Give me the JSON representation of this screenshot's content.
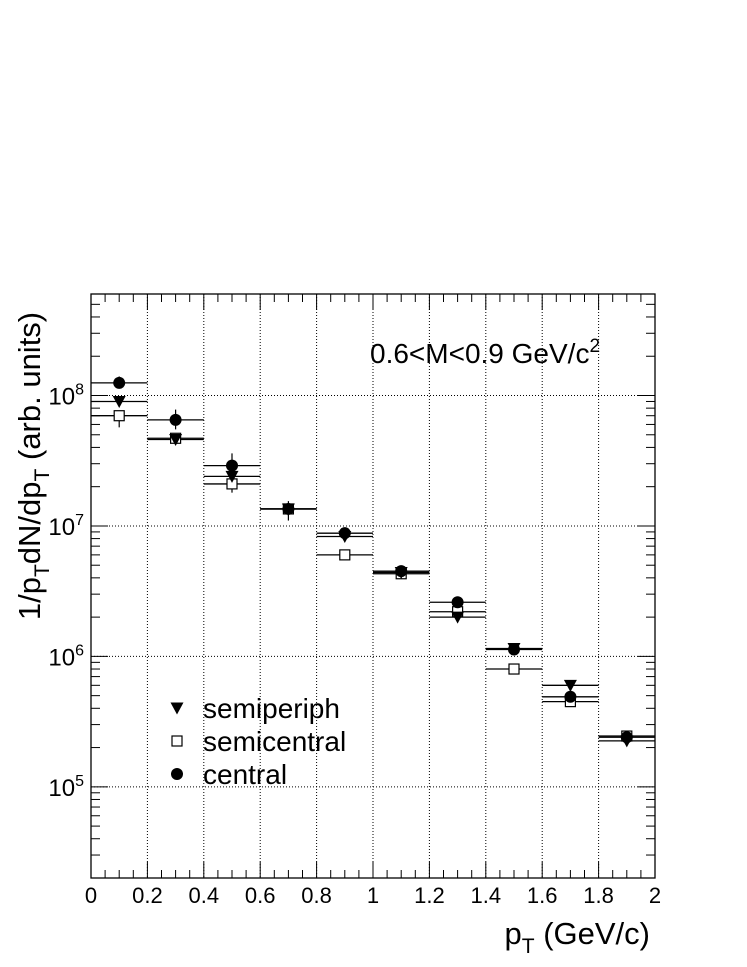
{
  "chart_data": {
    "type": "scatter",
    "annotation_main": "0.6<M<0.9 GeV/c",
    "annotation_sup": "2",
    "ylabel": {
      "parts": [
        {
          "t": "1/p",
          "s": "n"
        },
        {
          "t": "T",
          "s": "sub"
        },
        {
          "t": "dN/dp",
          "s": "n"
        },
        {
          "t": "T",
          "s": "sub"
        },
        {
          "t": " (arb. units)",
          "s": "n"
        }
      ]
    },
    "xlabel": {
      "parts": [
        {
          "t": "p",
          "s": "n"
        },
        {
          "t": "T",
          "s": "sub"
        },
        {
          "t": " (GeV/c)",
          "s": "n"
        }
      ]
    },
    "x_axis": {
      "range": [
        0,
        2
      ],
      "tick_values": [
        0,
        0.2,
        0.4,
        0.6,
        0.8,
        1,
        1.2,
        1.4,
        1.6,
        1.8,
        2
      ],
      "tick_labels": [
        "0",
        "0.2",
        "0.4",
        "0.6",
        "0.8",
        "1",
        "1.2",
        "1.4",
        "1.6",
        "1.8",
        "2"
      ]
    },
    "y_axis": {
      "scale": "log",
      "range": [
        20000,
        600000000
      ],
      "decade_values": [
        100000,
        1000000,
        10000000,
        100000000
      ],
      "decade_base": "10",
      "decade_exponents": [
        "5",
        "6",
        "7",
        "8"
      ]
    },
    "grid": true,
    "bin_halfwidth": 0.1,
    "legend_position": "lower-left",
    "series": [
      {
        "name": "semiperiph",
        "marker": "triangle-down-filled",
        "x": [
          0.1,
          0.3,
          0.5,
          0.7,
          0.9,
          1.1,
          1.3,
          1.5,
          1.7,
          1.9
        ],
        "y": [
          90000000,
          46000000,
          24000000,
          13500000,
          8300000,
          4400000,
          2000000,
          1150000,
          600000,
          225000
        ],
        "y_lo": [
          null,
          43000000,
          21000000,
          12000000,
          null,
          null,
          null,
          null,
          null,
          null
        ],
        "y_hi": [
          null,
          50000000,
          28000000,
          15500000,
          null,
          null,
          null,
          null,
          null,
          null
        ]
      },
      {
        "name": "semicentral",
        "marker": "square-open",
        "x": [
          0.1,
          0.3,
          0.5,
          0.7,
          0.9,
          1.1,
          1.3,
          1.5,
          1.7,
          1.9
        ],
        "y": [
          70000000,
          47000000,
          21000000,
          13500000,
          6000000,
          4300000,
          2200000,
          800000,
          450000,
          245000
        ],
        "y_lo": [
          57000000,
          null,
          18000000,
          11000000,
          null,
          null,
          null,
          null,
          null,
          null
        ],
        "y_hi": [
          null,
          null,
          null,
          null,
          null,
          null,
          null,
          null,
          null,
          null
        ]
      },
      {
        "name": "central",
        "marker": "circle-filled",
        "x": [
          0.1,
          0.3,
          0.5,
          0.7,
          0.9,
          1.1,
          1.3,
          1.5,
          1.7,
          1.9
        ],
        "y": [
          125000000,
          65000000,
          29000000,
          13500000,
          8800000,
          4500000,
          2600000,
          1130000,
          490000,
          240000
        ],
        "y_lo": [
          null,
          55000000,
          null,
          null,
          null,
          null,
          null,
          null,
          null,
          null
        ],
        "y_hi": [
          140000000,
          78000000,
          36000000,
          null,
          null,
          null,
          null,
          null,
          null,
          null
        ]
      }
    ]
  }
}
